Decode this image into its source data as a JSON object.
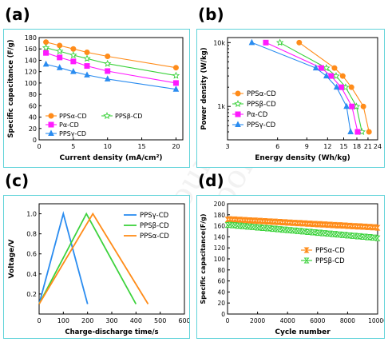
{
  "watermark": "Journal Pre-proof",
  "colors": {
    "orange": "#ff8c1a",
    "green": "#3cd23c",
    "magenta": "#ff1aff",
    "blue": "#2a8cf0",
    "border": "#5fd3d9"
  },
  "chart_data": [
    {
      "panel": "(a)",
      "type": "line",
      "xlabel": "Current density (mA/cm²)",
      "ylabel": "Specific capacitance (F/g)",
      "xlim": [
        0,
        21
      ],
      "ylim": [
        0,
        180
      ],
      "xticks": [
        "0",
        "5",
        "10",
        "15",
        "20"
      ],
      "yticks": [
        "0",
        "20",
        "40",
        "60",
        "80",
        "100",
        "120",
        "140",
        "160",
        "180"
      ],
      "legend": "lower-left",
      "series": [
        {
          "name": "PPSα-CD",
          "color": "#ff8c1a",
          "marker": "circle",
          "filled": true,
          "x": [
            1,
            3,
            5,
            7,
            10,
            20
          ],
          "y": [
            172,
            166,
            160,
            154,
            147,
            127
          ]
        },
        {
          "name": "PPSβ-CD",
          "color": "#3cd23c",
          "marker": "star",
          "filled": false,
          "x": [
            1,
            3,
            5,
            7,
            10,
            20
          ],
          "y": [
            162,
            156,
            149,
            143,
            134,
            113
          ]
        },
        {
          "name": "Pα-CD",
          "color": "#ff1aff",
          "marker": "square",
          "filled": true,
          "x": [
            1,
            3,
            5,
            7,
            10,
            20
          ],
          "y": [
            153,
            145,
            138,
            130,
            121,
            100
          ]
        },
        {
          "name": "PPSγ-CD",
          "color": "#2a8cf0",
          "marker": "triangle",
          "filled": true,
          "x": [
            1,
            3,
            5,
            7,
            10,
            20
          ],
          "y": [
            133,
            127,
            120,
            114,
            107,
            89
          ]
        }
      ]
    },
    {
      "panel": "(b)",
      "type": "line",
      "xlabel": "Energy density (Wh/kg)",
      "ylabel": "Power density (W/kg)",
      "xscale": "log",
      "yscale": "log",
      "xlim": [
        3,
        24
      ],
      "ylim": [
        300,
        12000
      ],
      "xticks": [
        "3",
        "6",
        "9",
        "12",
        "15",
        "18",
        "21",
        "24"
      ],
      "yticks": [
        "1k",
        "10k"
      ],
      "legend": "upper-left",
      "series": [
        {
          "name": "PPSα-CD",
          "color": "#ff8c1a",
          "marker": "circle",
          "filled": true,
          "x": [
            8.1,
            13.2,
            14.8,
            16.7,
            19.7,
            21.3
          ],
          "y": [
            10000,
            4000,
            3000,
            2000,
            1000,
            400
          ]
        },
        {
          "name": "PPSβ-CD",
          "color": "#3cd23c",
          "marker": "star",
          "filled": false,
          "x": [
            6.2,
            11.8,
            13.5,
            15.4,
            17.9,
            19.3
          ],
          "y": [
            10000,
            4000,
            3000,
            2000,
            1000,
            400
          ]
        },
        {
          "name": "Pα-CD",
          "color": "#ff1aff",
          "marker": "square",
          "filled": true,
          "x": [
            5.1,
            11.0,
            12.6,
            14.5,
            16.8,
            18.2
          ],
          "y": [
            10000,
            4000,
            3000,
            2000,
            1000,
            400
          ]
        },
        {
          "name": "PPSγ-CD",
          "color": "#2a8cf0",
          "marker": "triangle",
          "filled": true,
          "x": [
            4.2,
            10.2,
            11.8,
            13.6,
            15.6,
            16.5
          ],
          "y": [
            10000,
            4000,
            3000,
            2000,
            1000,
            400
          ]
        }
      ]
    },
    {
      "panel": "(c)",
      "type": "line",
      "xlabel": "Charge-discharge time/s",
      "ylabel": "Voltage/V",
      "xlim": [
        0,
        600
      ],
      "ylim": [
        0,
        1.1
      ],
      "xticks": [
        "0",
        "100",
        "200",
        "300",
        "400",
        "500",
        "600"
      ],
      "yticks": [
        "0.2",
        "0.4",
        "0.6",
        "0.8",
        "1.0"
      ],
      "legend": "upper-right",
      "series": [
        {
          "name": "PPSγ-CD",
          "color": "#2a8cf0",
          "x": [
            0,
            100,
            200
          ],
          "y": [
            0.1,
            1.0,
            0.1
          ]
        },
        {
          "name": "PPSβ-CD",
          "color": "#3cd23c",
          "x": [
            0,
            195,
            400
          ],
          "y": [
            0.1,
            1.0,
            0.1
          ]
        },
        {
          "name": "PPSα-CD",
          "color": "#ff8c1a",
          "x": [
            0,
            222,
            450
          ],
          "y": [
            0.1,
            1.0,
            0.1
          ]
        }
      ]
    },
    {
      "panel": "(d)",
      "type": "scatter",
      "xlabel": "Cycle number",
      "ylabel": "Specific capacitance(F/g)",
      "xlim": [
        0,
        10000
      ],
      "ylim": [
        0,
        200
      ],
      "xticks": [
        "0",
        "2000",
        "4000",
        "6000",
        "8000",
        "10000"
      ],
      "yticks": [
        "0",
        "20",
        "40",
        "60",
        "80",
        "100",
        "120",
        "140",
        "160",
        "180",
        "200"
      ],
      "legend": "right",
      "series": [
        {
          "name": "PPSα-CD",
          "color": "#ff8c1a",
          "marker": "hourglass",
          "start": 172,
          "end": 157
        },
        {
          "name": "PPSβ-CD",
          "color": "#3cd23c",
          "marker": "hourglass-open",
          "start": 162,
          "end": 138
        }
      ]
    }
  ]
}
